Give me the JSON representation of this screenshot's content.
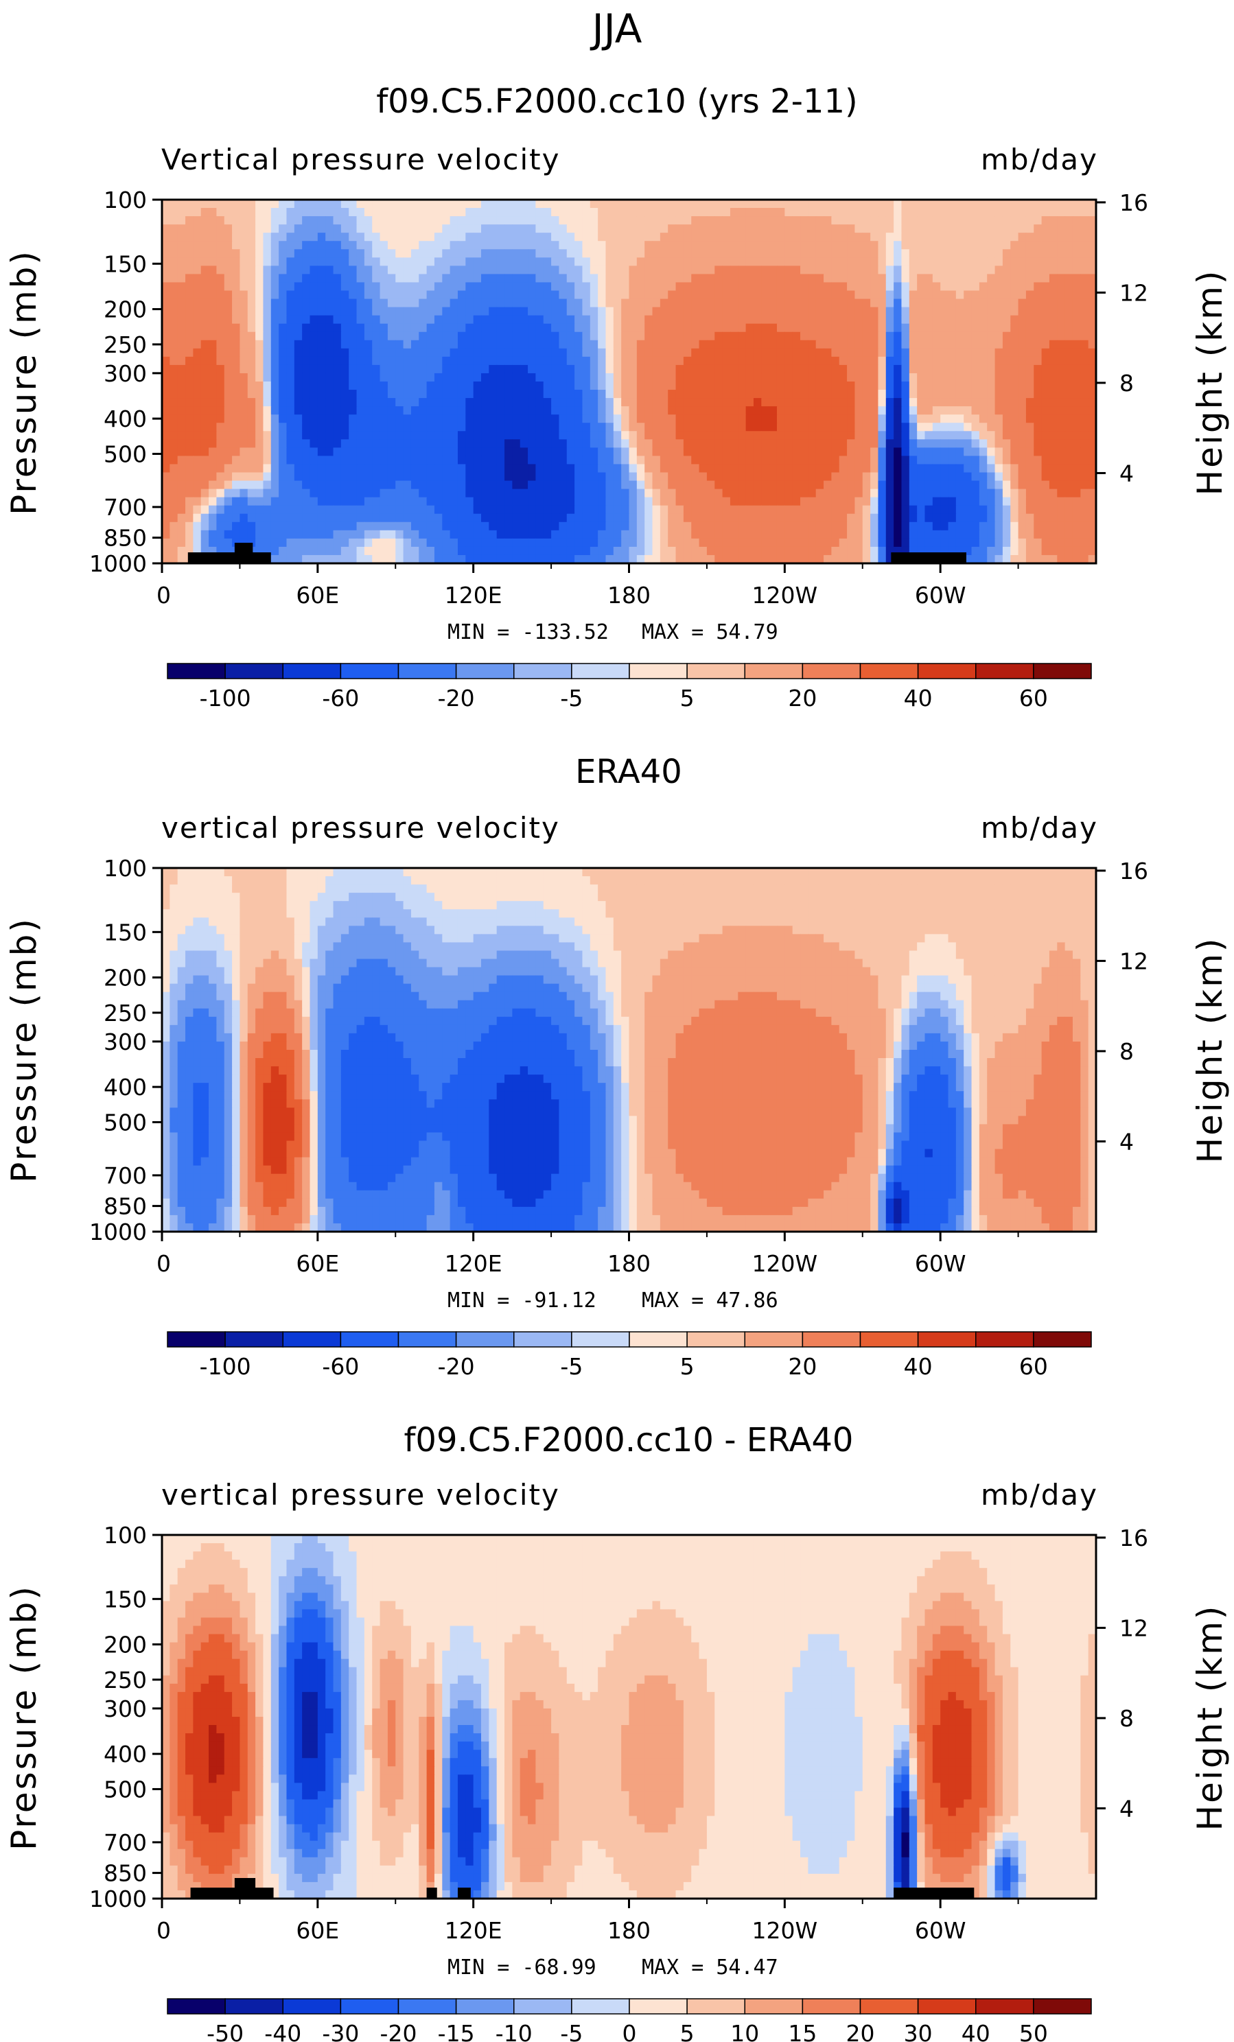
{
  "season": "JJA",
  "chart_data": [
    {
      "type": "heatmap",
      "title": "f09.C5.F2000.cc10 (yrs 2-11)",
      "left_label": "Vertical pressure velocity",
      "right_label": "mb/day",
      "ylabel": "Pressure (mb)",
      "y2label": "Height (km)",
      "x_ticks": [
        "0",
        "60E",
        "120E",
        "180",
        "120W",
        "60W"
      ],
      "x_tick_lons": [
        0,
        60,
        120,
        180,
        240,
        300
      ],
      "xlim": [
        0,
        360
      ],
      "p_ticks": [
        "100",
        "150",
        "200",
        "250",
        "300",
        "400",
        "500",
        "700",
        "850",
        "1000"
      ],
      "p_values": [
        100,
        150,
        200,
        250,
        300,
        400,
        500,
        700,
        850,
        1000
      ],
      "ylim": [
        1000,
        100
      ],
      "z_ticks": [
        "16",
        "12",
        "8",
        "4"
      ],
      "z_values": [
        16,
        12,
        8,
        4
      ],
      "min_label": "MIN = -133.52",
      "max_label": "MAX =  54.79",
      "min": -133.52,
      "max": 54.79,
      "colorbar_ticks": [
        "-100",
        "-60",
        "-20",
        "-5",
        "5",
        "20",
        "40",
        "60"
      ],
      "topography_lons": [
        [
          10,
          42
        ],
        [
          28,
          35
        ],
        [
          281,
          310
        ]
      ],
      "features": [
        {
          "lon": 20,
          "p": 330,
          "value": 15,
          "spread_lon": 8,
          "spread_p": 0.55
        },
        {
          "lon": 38,
          "p": 400,
          "value": 12,
          "spread_lon": 5,
          "spread_p": 0.45
        },
        {
          "lon": 30,
          "p": 820,
          "value": -30,
          "spread_lon": 12,
          "spread_p": 0.2
        },
        {
          "lon": 60,
          "p": 300,
          "value": -55,
          "spread_lon": 12,
          "spread_p": 0.5
        },
        {
          "lon": 80,
          "p": 500,
          "value": -20,
          "spread_lon": 15,
          "spread_p": 0.5
        },
        {
          "lon": 85,
          "p": 880,
          "value": 12,
          "spread_lon": 10,
          "spread_p": 0.12
        },
        {
          "lon": 135,
          "p": 450,
          "value": -60,
          "spread_lon": 22,
          "spread_p": 0.6
        },
        {
          "lon": 160,
          "p": 700,
          "value": -20,
          "spread_lon": 25,
          "spread_p": 0.3
        },
        {
          "lon": 230,
          "p": 400,
          "value": 28,
          "spread_lon": 40,
          "spread_p": 0.6
        },
        {
          "lon": 283,
          "p": 600,
          "value": -110,
          "spread_lon": 3,
          "spread_p": 0.6
        },
        {
          "lon": 300,
          "p": 720,
          "value": -50,
          "spread_lon": 15,
          "spread_p": 0.3
        },
        {
          "lon": 350,
          "p": 400,
          "value": 25,
          "spread_lon": 18,
          "spread_p": 0.6
        }
      ]
    },
    {
      "type": "heatmap",
      "title": "ERA40",
      "left_label": "vertical pressure velocity",
      "right_label": "mb/day",
      "ylabel": "Pressure (mb)",
      "y2label": "Height (km)",
      "x_ticks": [
        "0",
        "60E",
        "120E",
        "180",
        "120W",
        "60W"
      ],
      "x_tick_lons": [
        0,
        60,
        120,
        180,
        240,
        300
      ],
      "xlim": [
        0,
        360
      ],
      "p_ticks": [
        "100",
        "150",
        "200",
        "250",
        "300",
        "400",
        "500",
        "700",
        "850",
        "1000"
      ],
      "p_values": [
        100,
        150,
        200,
        250,
        300,
        400,
        500,
        700,
        850,
        1000
      ],
      "ylim": [
        1000,
        100
      ],
      "z_ticks": [
        "16",
        "12",
        "8",
        "4"
      ],
      "z_values": [
        16,
        12,
        8,
        4
      ],
      "min_label": "MIN = -91.12",
      "max_label": "MAX =  47.86",
      "min": -91.12,
      "max": 47.86,
      "colorbar_ticks": [
        "-100",
        "-60",
        "-20",
        "-5",
        "5",
        "20",
        "40",
        "60"
      ],
      "topography_lons": [],
      "features": [
        {
          "lon": 15,
          "p": 500,
          "value": -25,
          "spread_lon": 10,
          "spread_p": 0.6
        },
        {
          "lon": 45,
          "p": 500,
          "value": 40,
          "spread_lon": 9,
          "spread_p": 0.5
        },
        {
          "lon": 80,
          "p": 450,
          "value": -30,
          "spread_lon": 18,
          "spread_p": 0.7
        },
        {
          "lon": 140,
          "p": 550,
          "value": -55,
          "spread_lon": 20,
          "spread_p": 0.6
        },
        {
          "lon": 108,
          "p": 800,
          "value": 10,
          "spread_lon": 3,
          "spread_p": 0.2
        },
        {
          "lon": 230,
          "p": 450,
          "value": 15,
          "spread_lon": 35,
          "spread_p": 0.6
        },
        {
          "lon": 296,
          "p": 600,
          "value": -45,
          "spread_lon": 9,
          "spread_p": 0.5
        },
        {
          "lon": 283,
          "p": 880,
          "value": -60,
          "spread_lon": 3,
          "spread_p": 0.15
        },
        {
          "lon": 325,
          "p": 650,
          "value": 8,
          "spread_lon": 10,
          "spread_p": 0.5
        },
        {
          "lon": 348,
          "p": 500,
          "value": 15,
          "spread_lon": 8,
          "spread_p": 0.6
        }
      ]
    },
    {
      "type": "heatmap",
      "title": "f09.C5.F2000.cc10 - ERA40",
      "left_label": "vertical pressure velocity",
      "right_label": "mb/day",
      "ylabel": "Pressure (mb)",
      "y2label": "Height (km)",
      "x_ticks": [
        "0",
        "60E",
        "120E",
        "180",
        "120W",
        "60W"
      ],
      "x_tick_lons": [
        0,
        60,
        120,
        180,
        240,
        300
      ],
      "xlim": [
        0,
        360
      ],
      "p_ticks": [
        "100",
        "150",
        "200",
        "250",
        "300",
        "400",
        "500",
        "700",
        "850",
        "1000"
      ],
      "p_values": [
        100,
        150,
        200,
        250,
        300,
        400,
        500,
        700,
        850,
        1000
      ],
      "ylim": [
        1000,
        100
      ],
      "z_ticks": [
        "16",
        "12",
        "8",
        "4"
      ],
      "z_values": [
        16,
        12,
        8,
        4
      ],
      "min_label": "MIN = -68.99",
      "max_label": "MAX =  54.47",
      "min": -68.99,
      "max": 54.47,
      "colorbar_ticks": [
        "-50",
        "-40",
        "-30",
        "-20",
        "-15",
        "-10",
        "-5",
        "0",
        "5",
        "10",
        "15",
        "20",
        "30",
        "40",
        "50"
      ],
      "topography_lons": [
        [
          11,
          43
        ],
        [
          28,
          36
        ],
        [
          102,
          106
        ],
        [
          114,
          119
        ],
        [
          282,
          313
        ]
      ],
      "features": [
        {
          "lon": 20,
          "p": 400,
          "value": 40,
          "spread_lon": 12,
          "spread_p": 0.6
        },
        {
          "lon": 57,
          "p": 330,
          "value": -45,
          "spread_lon": 9,
          "spread_p": 0.6
        },
        {
          "lon": 88,
          "p": 350,
          "value": 15,
          "spread_lon": 6,
          "spread_p": 0.5
        },
        {
          "lon": 118,
          "p": 600,
          "value": -40,
          "spread_lon": 8,
          "spread_p": 0.5
        },
        {
          "lon": 104,
          "p": 550,
          "value": 30,
          "spread_lon": 3,
          "spread_p": 0.5
        },
        {
          "lon": 140,
          "p": 500,
          "value": 15,
          "spread_lon": 12,
          "spread_p": 0.6
        },
        {
          "lon": 190,
          "p": 400,
          "value": 12,
          "spread_lon": 15,
          "spread_p": 0.6
        },
        {
          "lon": 255,
          "p": 400,
          "value": -5,
          "spread_lon": 10,
          "spread_p": 0.5
        },
        {
          "lon": 286,
          "p": 700,
          "value": -60,
          "spread_lon": 3,
          "spread_p": 0.4
        },
        {
          "lon": 305,
          "p": 400,
          "value": 35,
          "spread_lon": 12,
          "spread_p": 0.6
        },
        {
          "lon": 325,
          "p": 850,
          "value": -30,
          "spread_lon": 4,
          "spread_p": 0.15
        }
      ]
    }
  ]
}
